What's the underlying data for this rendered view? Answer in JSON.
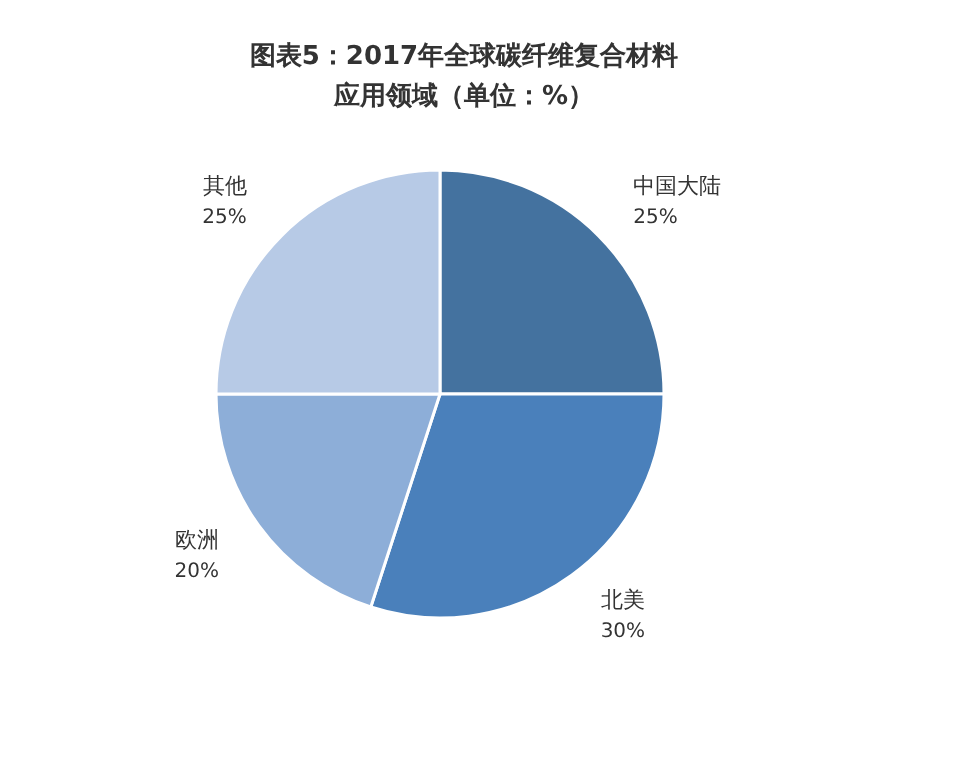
{
  "chart_data": {
    "type": "pie",
    "title": "图表5：2017年全球碳纤维复合材料应用领域（单位：%）",
    "categories": [
      "中国大陆",
      "北美",
      "欧洲",
      "其他"
    ],
    "values": [
      25,
      30,
      20,
      25
    ],
    "value_labels": [
      "25%",
      "30%",
      "20%",
      "25%"
    ],
    "colors": [
      "#44729f",
      "#4a80bb",
      "#8daed8",
      "#b7cae6"
    ]
  }
}
